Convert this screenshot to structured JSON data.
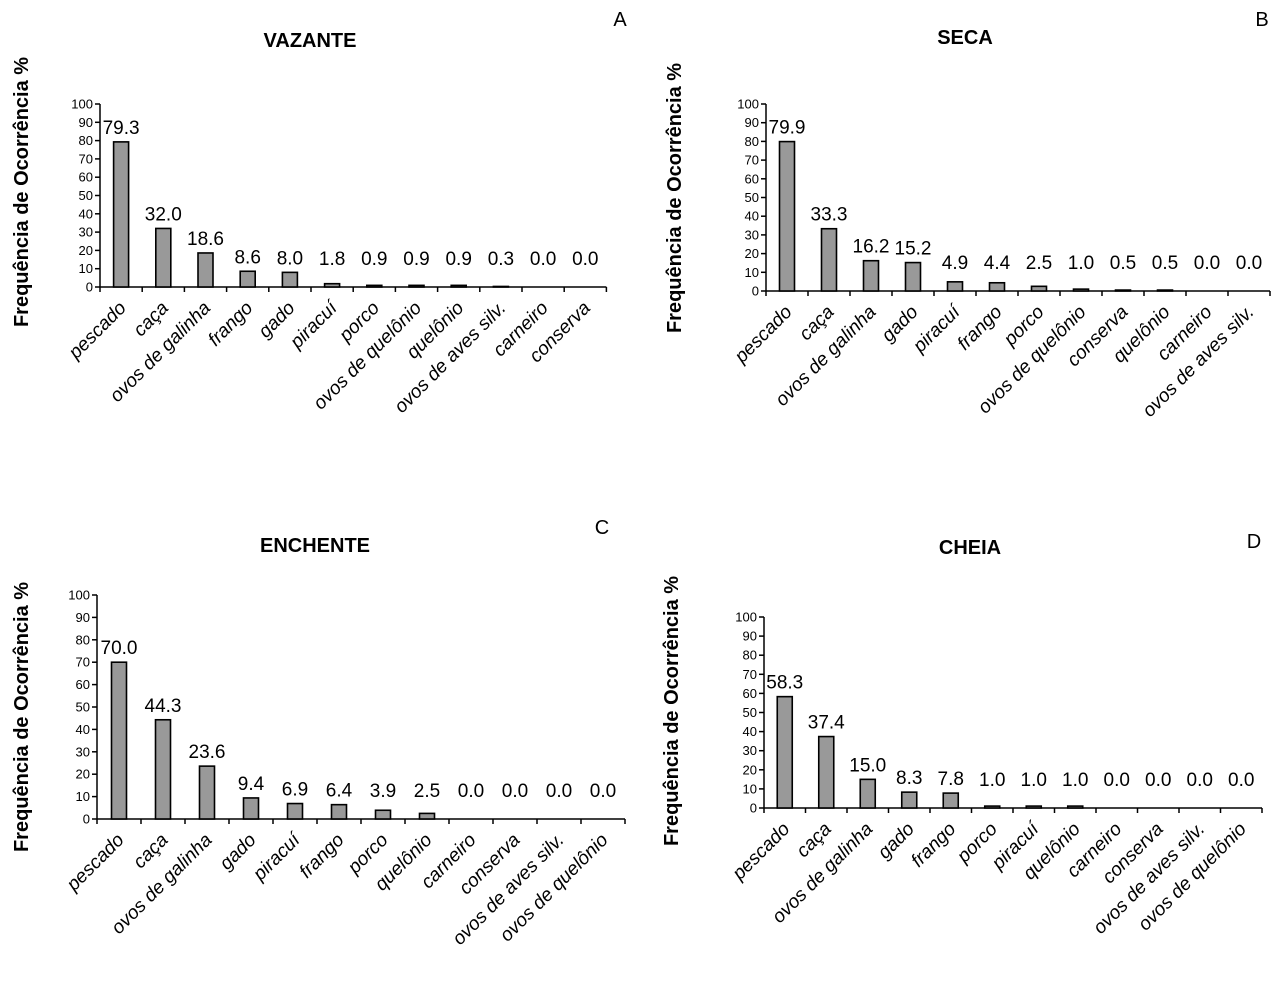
{
  "chart_data": [
    {
      "type": "bar",
      "title": "VAZANTE",
      "panel_letter": "A",
      "ylabel": "Frequência de Ocorrência %",
      "xlabel": "",
      "ylim": [
        0,
        100
      ],
      "yticks": [
        "0",
        "10",
        "20",
        "30",
        "40",
        "50",
        "60",
        "70",
        "80",
        "90",
        "100"
      ],
      "categories": [
        "pescado",
        "caça",
        "ovos de galinha",
        "frango",
        "gado",
        "piracuí",
        "porco",
        "ovos de quelônio",
        "quelônio",
        "ovos de aves silv.",
        "carneiro",
        "conserva"
      ],
      "values": [
        79.3,
        32.0,
        18.6,
        8.6,
        8.0,
        1.8,
        0.9,
        0.9,
        0.9,
        0.3,
        0.0,
        0.0
      ],
      "value_labels": [
        "79.3",
        "32.0",
        "18.6",
        "8.6",
        "8.0",
        "1.8",
        "0.9",
        "0.9",
        "0.9",
        "0.3",
        "0.0",
        "0.0"
      ],
      "bar_color": "#999999",
      "grid": false
    },
    {
      "type": "bar",
      "title": "SECA",
      "panel_letter": "B",
      "ylabel": "Frequência de Ocorrência %",
      "xlabel": "",
      "ylim": [
        0,
        100
      ],
      "yticks": [
        "0",
        "10",
        "20",
        "30",
        "40",
        "50",
        "60",
        "70",
        "80",
        "90",
        "100"
      ],
      "categories": [
        "pescado",
        "caça",
        "ovos de galinha",
        "gado",
        "piracuí",
        "frango",
        "porco",
        "ovos de quelônio",
        "conserva",
        "quelônio",
        "carneiro",
        "ovos de aves silv."
      ],
      "values": [
        79.9,
        33.3,
        16.2,
        15.2,
        4.9,
        4.4,
        2.5,
        1.0,
        0.5,
        0.5,
        0.0,
        0.0
      ],
      "value_labels": [
        "79.9",
        "33.3",
        "16.2",
        "15.2",
        "4.9",
        "4.4",
        "2.5",
        "1.0",
        "0.5",
        "0.5",
        "0.0",
        "0.0"
      ],
      "bar_color": "#999999",
      "grid": false
    },
    {
      "type": "bar",
      "title": "ENCHENTE",
      "panel_letter": "C",
      "ylabel": "Frequência de Ocorrência %",
      "xlabel": "",
      "ylim": [
        0,
        100
      ],
      "yticks": [
        "0",
        "10",
        "20",
        "30",
        "40",
        "50",
        "60",
        "70",
        "80",
        "90",
        "100"
      ],
      "categories": [
        "pescado",
        "caça",
        "ovos de galinha",
        "gado",
        "piracuí",
        "frango",
        "porco",
        "quelônio",
        "carneiro",
        "conserva",
        "ovos de aves silv.",
        "ovos de quelônio"
      ],
      "values": [
        70.0,
        44.3,
        23.6,
        9.4,
        6.9,
        6.4,
        3.9,
        2.5,
        0.0,
        0.0,
        0.0,
        0.0
      ],
      "value_labels": [
        "70.0",
        "44.3",
        "23.6",
        "9.4",
        "6.9",
        "6.4",
        "3.9",
        "2.5",
        "0.0",
        "0.0",
        "0.0",
        "0.0"
      ],
      "bar_color": "#999999",
      "grid": false
    },
    {
      "type": "bar",
      "title": "CHEIA",
      "panel_letter": "D",
      "ylabel": "Frequência de Ocorrência %",
      "xlabel": "",
      "ylim": [
        0,
        100
      ],
      "yticks": [
        "0",
        "10",
        "20",
        "30",
        "40",
        "50",
        "60",
        "70",
        "80",
        "90",
        "100"
      ],
      "categories": [
        "pescado",
        "caça",
        "ovos de galinha",
        "gado",
        "frango",
        "porco",
        "piracuí",
        "quelônio",
        "carneiro",
        "conserva",
        "ovos de aves silv.",
        "ovos de quelônio"
      ],
      "values": [
        58.3,
        37.4,
        15.0,
        8.3,
        7.8,
        1.0,
        1.0,
        1.0,
        0.0,
        0.0,
        0.0,
        0.0
      ],
      "value_labels": [
        "58.3",
        "37.4",
        "15.0",
        "8.3",
        "7.8",
        "1.0",
        "1.0",
        "1.0",
        "0.0",
        "0.0",
        "0.0",
        "0.0"
      ],
      "bar_color": "#999999",
      "grid": false
    }
  ]
}
